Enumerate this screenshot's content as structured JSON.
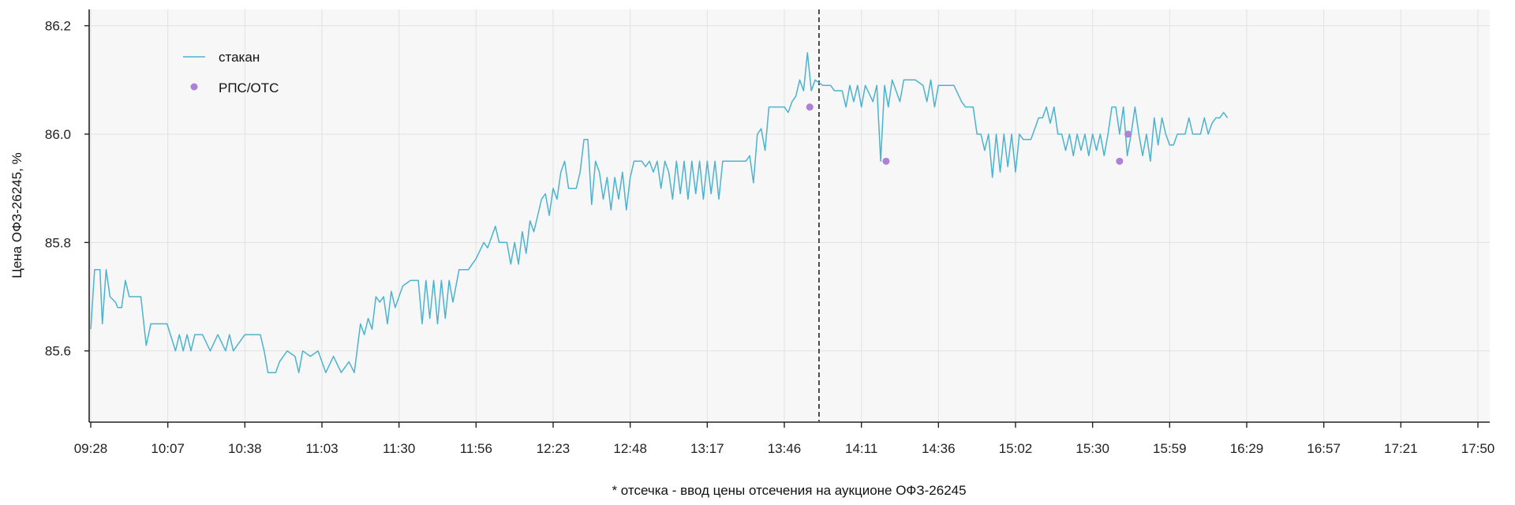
{
  "chart_data": {
    "type": "line",
    "ylabel": "Цена ОФЗ-26245, %",
    "footnote": "* отсечка - ввод цены отсечения на аукционе ОФЗ-26245",
    "ylim": [
      85.47,
      86.23
    ],
    "y_ticks": [
      85.6,
      85.8,
      86.0,
      86.2
    ],
    "y_tick_labels": [
      "85.6",
      "85.8",
      "86.0",
      "86.2"
    ],
    "x_tick_labels": [
      "09:28",
      "10:07",
      "10:38",
      "11:03",
      "11:30",
      "11:56",
      "12:23",
      "12:48",
      "13:17",
      "13:46",
      "14:11",
      "14:36",
      "15:02",
      "15:30",
      "15:59",
      "16:29",
      "16:57",
      "17:21",
      "17:50"
    ],
    "grid": true,
    "legend_position": "top-left",
    "cutoff_marker_index": 9.45,
    "colors": {
      "stakan": "#4bb3cf",
      "rps": "#b07fd6",
      "grid": "#e2e2e2",
      "background": "#f7f7f7",
      "axis": "#222222"
    },
    "series": [
      {
        "name": "стакан",
        "style": "line",
        "points": [
          [
            0.0,
            85.64
          ],
          [
            0.05,
            85.75
          ],
          [
            0.12,
            85.75
          ],
          [
            0.15,
            85.65
          ],
          [
            0.2,
            85.75
          ],
          [
            0.25,
            85.7
          ],
          [
            0.32,
            85.69
          ],
          [
            0.35,
            85.68
          ],
          [
            0.4,
            85.68
          ],
          [
            0.45,
            85.73
          ],
          [
            0.5,
            85.7
          ],
          [
            0.58,
            85.7
          ],
          [
            0.65,
            85.7
          ],
          [
            0.72,
            85.61
          ],
          [
            0.78,
            85.65
          ],
          [
            0.9,
            85.65
          ],
          [
            0.99,
            85.65
          ],
          [
            1.1,
            85.6
          ],
          [
            1.15,
            85.63
          ],
          [
            1.2,
            85.6
          ],
          [
            1.25,
            85.63
          ],
          [
            1.3,
            85.6
          ],
          [
            1.35,
            85.63
          ],
          [
            1.45,
            85.63
          ],
          [
            1.55,
            85.6
          ],
          [
            1.65,
            85.63
          ],
          [
            1.75,
            85.6
          ],
          [
            1.8,
            85.63
          ],
          [
            1.85,
            85.6
          ],
          [
            2.0,
            85.63
          ],
          [
            2.2,
            85.63
          ],
          [
            2.25,
            85.6
          ],
          [
            2.3,
            85.56
          ],
          [
            2.4,
            85.56
          ],
          [
            2.45,
            85.58
          ],
          [
            2.55,
            85.6
          ],
          [
            2.65,
            85.59
          ],
          [
            2.7,
            85.56
          ],
          [
            2.75,
            85.6
          ],
          [
            2.85,
            85.59
          ],
          [
            2.95,
            85.6
          ],
          [
            3.05,
            85.56
          ],
          [
            3.15,
            85.59
          ],
          [
            3.25,
            85.56
          ],
          [
            3.35,
            85.58
          ],
          [
            3.42,
            85.56
          ],
          [
            3.5,
            85.65
          ],
          [
            3.55,
            85.63
          ],
          [
            3.6,
            85.66
          ],
          [
            3.65,
            85.64
          ],
          [
            3.7,
            85.7
          ],
          [
            3.75,
            85.69
          ],
          [
            3.8,
            85.7
          ],
          [
            3.85,
            85.65
          ],
          [
            3.9,
            85.71
          ],
          [
            3.95,
            85.68
          ],
          [
            4.05,
            85.72
          ],
          [
            4.15,
            85.73
          ],
          [
            4.25,
            85.73
          ],
          [
            4.3,
            85.65
          ],
          [
            4.35,
            85.73
          ],
          [
            4.4,
            85.66
          ],
          [
            4.45,
            85.73
          ],
          [
            4.5,
            85.65
          ],
          [
            4.55,
            85.73
          ],
          [
            4.6,
            85.66
          ],
          [
            4.65,
            85.73
          ],
          [
            4.7,
            85.69
          ],
          [
            4.78,
            85.75
          ],
          [
            4.9,
            85.75
          ],
          [
            5.0,
            85.77
          ],
          [
            5.1,
            85.8
          ],
          [
            5.15,
            85.79
          ],
          [
            5.25,
            85.83
          ],
          [
            5.3,
            85.8
          ],
          [
            5.4,
            85.8
          ],
          [
            5.45,
            85.76
          ],
          [
            5.5,
            85.8
          ],
          [
            5.55,
            85.76
          ],
          [
            5.6,
            85.82
          ],
          [
            5.65,
            85.78
          ],
          [
            5.7,
            85.84
          ],
          [
            5.75,
            85.82
          ],
          [
            5.8,
            85.85
          ],
          [
            5.85,
            85.88
          ],
          [
            5.9,
            85.89
          ],
          [
            5.95,
            85.85
          ],
          [
            6.0,
            85.9
          ],
          [
            6.05,
            85.88
          ],
          [
            6.1,
            85.93
          ],
          [
            6.15,
            85.95
          ],
          [
            6.2,
            85.9
          ],
          [
            6.3,
            85.9
          ],
          [
            6.35,
            85.93
          ],
          [
            6.4,
            85.99
          ],
          [
            6.45,
            85.99
          ],
          [
            6.5,
            85.87
          ],
          [
            6.55,
            85.95
          ],
          [
            6.6,
            85.93
          ],
          [
            6.65,
            85.88
          ],
          [
            6.7,
            85.92
          ],
          [
            6.75,
            85.86
          ],
          [
            6.8,
            85.92
          ],
          [
            6.85,
            85.88
          ],
          [
            6.9,
            85.93
          ],
          [
            6.95,
            85.86
          ],
          [
            7.0,
            85.92
          ],
          [
            7.05,
            85.95
          ],
          [
            7.15,
            85.95
          ],
          [
            7.2,
            85.94
          ],
          [
            7.25,
            85.95
          ],
          [
            7.3,
            85.93
          ],
          [
            7.35,
            85.95
          ],
          [
            7.4,
            85.9
          ],
          [
            7.45,
            85.95
          ],
          [
            7.5,
            85.93
          ],
          [
            7.55,
            85.88
          ],
          [
            7.6,
            85.95
          ],
          [
            7.65,
            85.89
          ],
          [
            7.7,
            85.95
          ],
          [
            7.75,
            85.88
          ],
          [
            7.8,
            85.95
          ],
          [
            7.85,
            85.89
          ],
          [
            7.9,
            85.95
          ],
          [
            7.95,
            85.88
          ],
          [
            8.0,
            85.95
          ],
          [
            8.05,
            85.89
          ],
          [
            8.1,
            85.95
          ],
          [
            8.15,
            85.88
          ],
          [
            8.2,
            85.95
          ],
          [
            8.3,
            85.95
          ],
          [
            8.4,
            85.95
          ],
          [
            8.5,
            85.95
          ],
          [
            8.55,
            85.96
          ],
          [
            8.6,
            85.91
          ],
          [
            8.65,
            86.0
          ],
          [
            8.7,
            86.01
          ],
          [
            8.75,
            85.97
          ],
          [
            8.8,
            86.05
          ],
          [
            8.9,
            86.05
          ],
          [
            9.0,
            86.05
          ],
          [
            9.05,
            86.04
          ],
          [
            9.1,
            86.06
          ],
          [
            9.15,
            86.07
          ],
          [
            9.2,
            86.1
          ],
          [
            9.25,
            86.08
          ],
          [
            9.3,
            86.15
          ],
          [
            9.35,
            86.08
          ],
          [
            9.4,
            86.1
          ],
          [
            9.5,
            86.09
          ],
          [
            9.6,
            86.09
          ],
          [
            9.65,
            86.08
          ],
          [
            9.75,
            86.08
          ],
          [
            9.8,
            86.05
          ],
          [
            9.85,
            86.09
          ],
          [
            9.9,
            86.06
          ],
          [
            9.95,
            86.09
          ],
          [
            10.0,
            86.05
          ],
          [
            10.05,
            86.09
          ],
          [
            10.15,
            86.06
          ],
          [
            10.2,
            86.09
          ],
          [
            10.25,
            85.95
          ],
          [
            10.3,
            86.09
          ],
          [
            10.35,
            86.05
          ],
          [
            10.4,
            86.1
          ],
          [
            10.5,
            86.06
          ],
          [
            10.55,
            86.1
          ],
          [
            10.7,
            86.1
          ],
          [
            10.8,
            86.09
          ],
          [
            10.85,
            86.06
          ],
          [
            10.9,
            86.1
          ],
          [
            10.95,
            86.05
          ],
          [
            11.0,
            86.09
          ],
          [
            11.1,
            86.09
          ],
          [
            11.2,
            86.09
          ],
          [
            11.3,
            86.06
          ],
          [
            11.35,
            86.05
          ],
          [
            11.45,
            86.05
          ],
          [
            11.5,
            86.0
          ],
          [
            11.55,
            86.0
          ],
          [
            11.6,
            85.97
          ],
          [
            11.65,
            86.0
          ],
          [
            11.7,
            85.92
          ],
          [
            11.75,
            86.0
          ],
          [
            11.8,
            85.93
          ],
          [
            11.85,
            86.0
          ],
          [
            11.9,
            85.94
          ],
          [
            11.95,
            86.0
          ],
          [
            12.0,
            85.93
          ],
          [
            12.05,
            86.0
          ],
          [
            12.1,
            85.99
          ],
          [
            12.2,
            85.99
          ],
          [
            12.25,
            86.01
          ],
          [
            12.3,
            86.03
          ],
          [
            12.35,
            86.03
          ],
          [
            12.4,
            86.05
          ],
          [
            12.45,
            86.02
          ],
          [
            12.5,
            86.05
          ],
          [
            12.55,
            86.0
          ],
          [
            12.6,
            86.0
          ],
          [
            12.65,
            85.97
          ],
          [
            12.7,
            86.0
          ],
          [
            12.75,
            85.96
          ],
          [
            12.8,
            86.0
          ],
          [
            12.85,
            85.97
          ],
          [
            12.9,
            86.0
          ],
          [
            12.95,
            85.96
          ],
          [
            13.0,
            86.0
          ],
          [
            13.05,
            85.97
          ],
          [
            13.1,
            86.0
          ],
          [
            13.15,
            85.96
          ],
          [
            13.2,
            86.0
          ],
          [
            13.25,
            86.05
          ],
          [
            13.3,
            86.05
          ],
          [
            13.35,
            86.0
          ],
          [
            13.4,
            86.05
          ],
          [
            13.45,
            85.96
          ],
          [
            13.5,
            86.0
          ],
          [
            13.55,
            86.05
          ],
          [
            13.6,
            86.0
          ],
          [
            13.65,
            85.96
          ],
          [
            13.7,
            86.0
          ],
          [
            13.75,
            85.95
          ],
          [
            13.8,
            86.03
          ],
          [
            13.85,
            85.98
          ],
          [
            13.9,
            86.03
          ],
          [
            13.95,
            86.0
          ],
          [
            14.0,
            85.98
          ],
          [
            14.05,
            85.98
          ],
          [
            14.1,
            86.0
          ],
          [
            14.2,
            86.0
          ],
          [
            14.25,
            86.03
          ],
          [
            14.3,
            86.0
          ],
          [
            14.4,
            86.0
          ],
          [
            14.45,
            86.03
          ],
          [
            14.5,
            86.0
          ],
          [
            14.55,
            86.02
          ],
          [
            14.6,
            86.03
          ],
          [
            14.65,
            86.03
          ],
          [
            14.7,
            86.04
          ],
          [
            14.75,
            86.03
          ]
        ]
      },
      {
        "name": "РПС/ОТС",
        "style": "points",
        "points": [
          [
            9.33,
            86.05
          ],
          [
            10.32,
            85.95
          ],
          [
            13.35,
            85.95
          ],
          [
            13.46,
            86.0
          ]
        ]
      }
    ]
  }
}
